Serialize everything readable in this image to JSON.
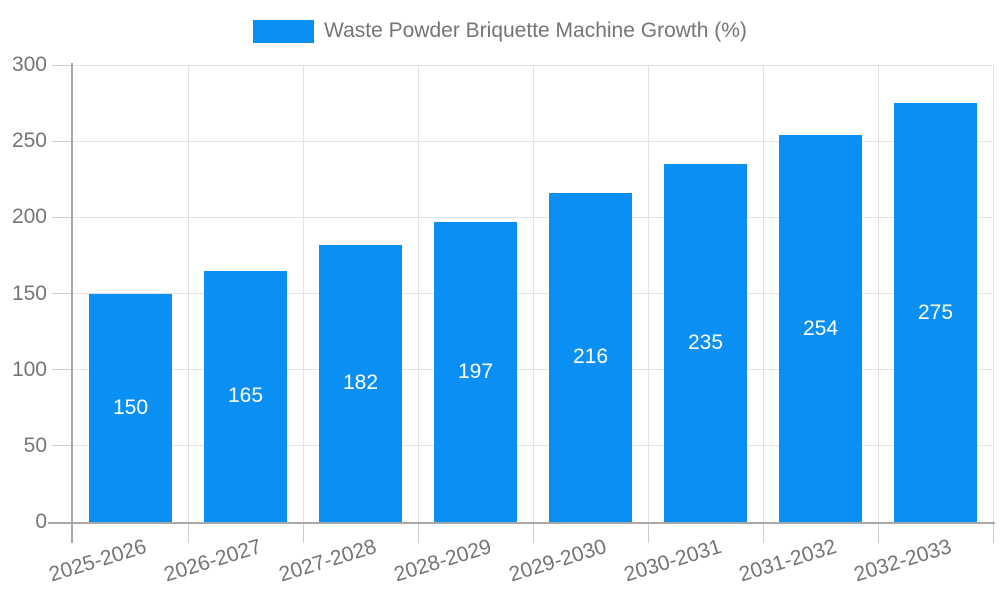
{
  "legend": {
    "label": "Waste Powder Briquette Machine Growth (%)"
  },
  "colors": {
    "bar": "#0a90f5",
    "grid": "#e3e3e3",
    "axis": "#a8a8a8",
    "tick": "#cccccc",
    "text": "#757575",
    "value_label": "#ffffff",
    "background": "#ffffff"
  },
  "chart_data": {
    "type": "bar",
    "title": "Waste Powder Briquette Machine Growth (%)",
    "categories": [
      "2025-2026",
      "2026-2027",
      "2027-2028",
      "2028-2029",
      "2029-2030",
      "2030-2031",
      "2031-2032",
      "2032-2033"
    ],
    "values": [
      150,
      165,
      182,
      197,
      216,
      235,
      254,
      275
    ],
    "xlabel": "",
    "ylabel": "",
    "ylim": [
      0,
      300
    ],
    "yticks": [
      0,
      50,
      100,
      150,
      200,
      250,
      300
    ],
    "grid": true,
    "legend_position": "top-center",
    "value_labels": "inside-center",
    "x_label_rotation_deg": -17
  }
}
